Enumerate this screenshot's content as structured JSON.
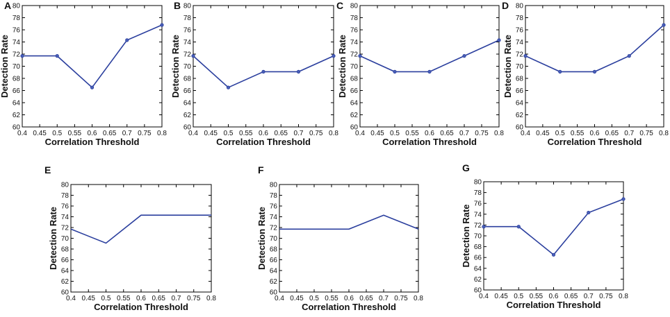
{
  "figure": {
    "series_color": "#2b3f9e",
    "marker_color": "#4a60b8"
  },
  "chart_data": [
    {
      "panel": "A",
      "type": "line",
      "xlabel": "Correlation Threshold",
      "ylabel": "Detection Rate",
      "xlim": [
        0.4,
        0.8
      ],
      "ylim": [
        60,
        80
      ],
      "xticks": [
        "0.4",
        "0.45",
        "0.5",
        "0.55",
        "0.6",
        "0.65",
        "0.7",
        "0.75",
        "0.8"
      ],
      "yticks": [
        "60",
        "62",
        "64",
        "66",
        "68",
        "70",
        "72",
        "74",
        "76",
        "78",
        "80"
      ],
      "x": [
        0.4,
        0.5,
        0.6,
        0.7,
        0.8
      ],
      "values": [
        71.7,
        71.7,
        66.5,
        74.3,
        76.8
      ],
      "markers": true
    },
    {
      "panel": "B",
      "type": "line",
      "xlabel": "Correlation Threshold",
      "ylabel": "Detection Rate",
      "xlim": [
        0.4,
        0.8
      ],
      "ylim": [
        60,
        80
      ],
      "xticks": [
        "0.4",
        "0.45",
        "0.5",
        "0.55",
        "0.6",
        "0.65",
        "0.7",
        "0.75",
        "0.8"
      ],
      "yticks": [
        "60",
        "62",
        "64",
        "66",
        "68",
        "70",
        "72",
        "74",
        "76",
        "78",
        "80"
      ],
      "x": [
        0.4,
        0.5,
        0.6,
        0.7,
        0.8
      ],
      "values": [
        71.7,
        66.5,
        69.1,
        69.1,
        71.7
      ],
      "markers": true
    },
    {
      "panel": "C",
      "type": "line",
      "xlabel": "Correlation Threshold",
      "ylabel": "Detection Rate",
      "xlim": [
        0.4,
        0.8
      ],
      "ylim": [
        60,
        80
      ],
      "xticks": [
        "0.4",
        "0.45",
        "0.5",
        "0.55",
        "0.6",
        "0.65",
        "0.7",
        "0.75",
        "0.8"
      ],
      "yticks": [
        "60",
        "62",
        "64",
        "66",
        "68",
        "70",
        "72",
        "74",
        "76",
        "78",
        "80"
      ],
      "x": [
        0.4,
        0.5,
        0.6,
        0.7,
        0.8
      ],
      "values": [
        71.7,
        69.1,
        69.1,
        71.7,
        74.3
      ],
      "markers": true
    },
    {
      "panel": "D",
      "type": "line",
      "xlabel": "Correlation Threshold",
      "ylabel": "Detection Rate",
      "xlim": [
        0.4,
        0.8
      ],
      "ylim": [
        60,
        80
      ],
      "xticks": [
        "0.4",
        "0.45",
        "0.5",
        "0.55",
        "0.6",
        "0.65",
        "0.7",
        "0.75",
        "0.8"
      ],
      "yticks": [
        "60",
        "62",
        "64",
        "66",
        "68",
        "70",
        "72",
        "74",
        "76",
        "78",
        "80"
      ],
      "x": [
        0.4,
        0.5,
        0.6,
        0.7,
        0.8
      ],
      "values": [
        71.7,
        69.1,
        69.1,
        71.7,
        76.8
      ],
      "markers": true
    },
    {
      "panel": "E",
      "type": "line",
      "xlabel": "Correlation Threshold",
      "ylabel": "Detection Rate",
      "xlim": [
        0.4,
        0.8
      ],
      "ylim": [
        60,
        80
      ],
      "xticks": [
        "0.4",
        "0.45",
        "0.5",
        "0.55",
        "0.6",
        "0.65",
        "0.7",
        "0.75",
        "0.8"
      ],
      "yticks": [
        "60",
        "62",
        "64",
        "66",
        "68",
        "70",
        "72",
        "74",
        "76",
        "78",
        "80"
      ],
      "x": [
        0.4,
        0.5,
        0.6,
        0.7,
        0.8
      ],
      "values": [
        71.7,
        69.1,
        74.3,
        74.3,
        74.3
      ],
      "markers": false
    },
    {
      "panel": "F",
      "type": "line",
      "xlabel": "Correlation Threshold",
      "ylabel": "Detection Rate",
      "xlim": [
        0.4,
        0.8
      ],
      "ylim": [
        60,
        80
      ],
      "xticks": [
        "0.4",
        "0.45",
        "0.5",
        "0.55",
        "0.6",
        "0.65",
        "0.7",
        "0.75",
        "0.8"
      ],
      "yticks": [
        "60",
        "62",
        "64",
        "66",
        "68",
        "70",
        "72",
        "74",
        "76",
        "78",
        "80"
      ],
      "x": [
        0.4,
        0.5,
        0.6,
        0.7,
        0.8
      ],
      "values": [
        71.7,
        71.7,
        71.7,
        74.3,
        71.7
      ],
      "markers": false
    },
    {
      "panel": "G",
      "type": "line",
      "xlabel": "Correlation Threshold",
      "ylabel": "Detection Rate",
      "xlim": [
        0.4,
        0.8
      ],
      "ylim": [
        60,
        80
      ],
      "xticks": [
        "0.4",
        "0.45",
        "0.5",
        "0.55",
        "0.6",
        "0.65",
        "0.7",
        "0.75",
        "0.8"
      ],
      "yticks": [
        "60",
        "62",
        "64",
        "66",
        "68",
        "70",
        "72",
        "74",
        "76",
        "78",
        "80"
      ],
      "x": [
        0.4,
        0.5,
        0.6,
        0.7,
        0.8
      ],
      "values": [
        71.7,
        71.7,
        66.5,
        74.3,
        76.8
      ],
      "markers": true
    }
  ]
}
